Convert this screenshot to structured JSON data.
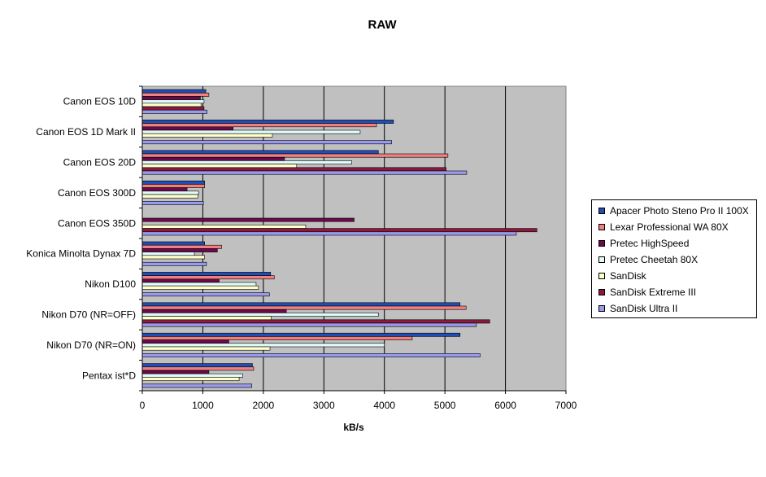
{
  "chart_data": {
    "type": "bar",
    "orientation": "horizontal",
    "title": "RAW",
    "xlabel": "kB/s",
    "ylabel": "",
    "xlim": [
      0,
      7000
    ],
    "xticks": [
      "0",
      "1000",
      "2000",
      "3000",
      "4000",
      "5000",
      "6000",
      "7000"
    ],
    "grid": "vertical",
    "legend_position": "right",
    "plot_background": "#c0c0c0",
    "categories": [
      "Canon EOS 10D",
      "Canon EOS 1D Mark II",
      "Canon EOS 20D",
      "Canon EOS 300D",
      "Canon EOS 350D",
      "Konica Minolta Dynax 7D",
      "Nikon D100",
      "Nikon D70 (NR=OFF)",
      "Nikon D70 (NR=ON)",
      "Pentax ist*D"
    ],
    "series": [
      {
        "name": "Apacer Photo Steno Pro II 100X",
        "color": "#1f4eb4",
        "values": [
          1050,
          4150,
          3900,
          1030,
          0,
          1030,
          2120,
          5250,
          5250,
          1820
        ]
      },
      {
        "name": "Lexar Professional WA 80X",
        "color": "#f08080",
        "values": [
          1100,
          3870,
          5050,
          1030,
          0,
          1310,
          2180,
          5350,
          4460,
          1840
        ]
      },
      {
        "name": "Pretec HighSpeed",
        "color": "#6a0a4a",
        "values": [
          960,
          1500,
          2350,
          740,
          3500,
          1240,
          1270,
          2380,
          1430,
          1100
        ]
      },
      {
        "name": "Pretec Cheetah 80X",
        "color": "#e0fafa",
        "values": [
          1020,
          3600,
          3460,
          930,
          0,
          860,
          1880,
          3900,
          4000,
          1660
        ]
      },
      {
        "name": "SanDisk",
        "color": "#ffffcc",
        "values": [
          970,
          2150,
          2550,
          920,
          2700,
          1030,
          1920,
          2130,
          2110,
          1600
        ]
      },
      {
        "name": "SanDisk Extreme III",
        "color": "#8b1a3a",
        "values": [
          1020,
          0,
          5020,
          0,
          6520,
          0,
          0,
          5740,
          0,
          0
        ]
      },
      {
        "name": "SanDisk Ultra II",
        "color": "#9999ee",
        "values": [
          1070,
          4120,
          5360,
          1010,
          6180,
          1060,
          2100,
          5520,
          5580,
          1810
        ]
      }
    ]
  }
}
